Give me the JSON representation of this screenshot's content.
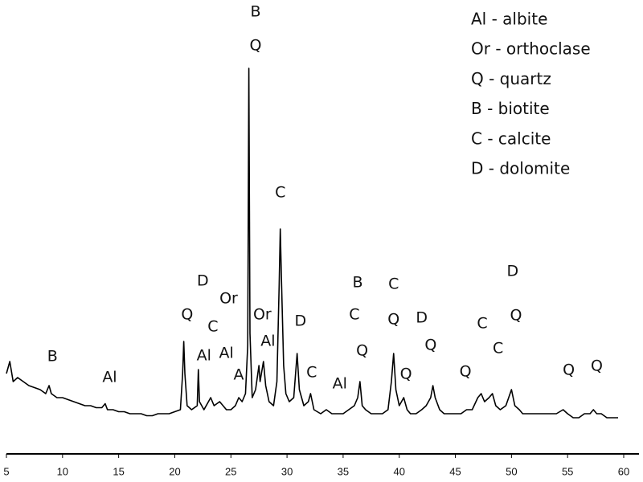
{
  "chart_data": {
    "type": "line",
    "legend": [
      "Al - albite",
      "Or - orthoclase",
      "Q - quartz",
      "B - biotite",
      "C - calcite",
      "D - dolomite"
    ],
    "xlim": [
      5,
      60
    ],
    "xticks": [
      5,
      10,
      15,
      20,
      25,
      30,
      35,
      40,
      45,
      50,
      55,
      60
    ],
    "ylim": [
      0,
      112
    ],
    "series": [
      {
        "color": "#000000",
        "x": [
          5,
          5.3,
          5.6,
          6,
          6.5,
          7,
          7.5,
          8,
          8.5,
          8.8,
          9,
          9.5,
          10,
          10.5,
          11,
          11.5,
          12,
          12.5,
          13,
          13.5,
          13.8,
          14,
          14.5,
          15,
          15.5,
          16,
          16.5,
          17,
          17.5,
          18,
          18.5,
          19,
          19.5,
          20,
          20.5,
          20.7,
          20.8,
          20.9,
          21.1,
          21.5,
          22,
          22.1,
          22.2,
          22.6,
          23,
          23.2,
          23.5,
          24,
          24.3,
          24.6,
          25,
          25.4,
          25.7,
          26,
          26.3,
          26.5,
          26.6,
          26.7,
          26.9,
          27.2,
          27.5,
          27.6,
          27.9,
          28.1,
          28.4,
          28.8,
          29.1,
          29.3,
          29.4,
          29.5,
          29.7,
          29.9,
          30.2,
          30.6,
          30.9,
          31.1,
          31.5,
          31.9,
          32.1,
          32.4,
          33,
          33.5,
          34,
          34.5,
          35,
          35.5,
          36,
          36.3,
          36.5,
          36.7,
          37,
          37.5,
          38,
          38.5,
          39,
          39.3,
          39.5,
          39.7,
          40,
          40.4,
          40.7,
          41,
          41.5,
          42,
          42.4,
          42.8,
          43,
          43.2,
          43.6,
          44,
          44.5,
          45,
          45.5,
          46,
          46.5,
          47,
          47.3,
          47.6,
          48,
          48.3,
          48.6,
          49,
          49.5,
          50,
          50.3,
          50.7,
          51,
          51.5,
          52,
          52.5,
          53,
          53.5,
          54,
          54.6,
          55,
          55.5,
          56,
          56.5,
          57,
          57.3,
          57.6,
          58,
          58.5,
          59,
          59.5
        ],
        "values": [
          20,
          23,
          18,
          19,
          18,
          17,
          16.5,
          16,
          15,
          17,
          15,
          14,
          14,
          13.5,
          13,
          12.5,
          12,
          12,
          11.5,
          11.5,
          12.5,
          11,
          11,
          10.5,
          10.5,
          10,
          10,
          10,
          9.5,
          9.5,
          10,
          10,
          10,
          10.5,
          11,
          20,
          28,
          20,
          12,
          11,
          12,
          21,
          13,
          11,
          13,
          14,
          12,
          13,
          12,
          11,
          11,
          12,
          14,
          13,
          15,
          27,
          96,
          30,
          14,
          16,
          22,
          18,
          23,
          17,
          13,
          12,
          18,
          42,
          56,
          44,
          22,
          15,
          13,
          14,
          25,
          16,
          12,
          13,
          15,
          11,
          10,
          11,
          10,
          10,
          10,
          11,
          12,
          14,
          18,
          12,
          11,
          10,
          10,
          10,
          11,
          18,
          25,
          16,
          12,
          14,
          11,
          10,
          10,
          11,
          12,
          14,
          17,
          14,
          11,
          10,
          10,
          10,
          10,
          11,
          11,
          14,
          15,
          13,
          14,
          15,
          12,
          11,
          12,
          16,
          12,
          11,
          10,
          10,
          10,
          10,
          10,
          10,
          10,
          11,
          10,
          9,
          9,
          10,
          10,
          11,
          10,
          10,
          9,
          9,
          9
        ]
      }
    ],
    "annotations": [
      {
        "text": "B",
        "x": 27.2,
        "y": 110
      },
      {
        "text": "Q",
        "x": 27.2,
        "y": 101.6
      },
      {
        "text": "C",
        "x": 29.4,
        "y": 65
      },
      {
        "text": "D",
        "x": 22.5,
        "y": 43
      },
      {
        "text": "Or",
        "x": 24.8,
        "y": 38.6
      },
      {
        "text": "Q",
        "x": 21.1,
        "y": 34.6
      },
      {
        "text": "C",
        "x": 23.4,
        "y": 31.6
      },
      {
        "text": "Al",
        "x": 22.6,
        "y": 24.4
      },
      {
        "text": "Al",
        "x": 24.6,
        "y": 25
      },
      {
        "text": "A",
        "x": 25.7,
        "y": 19.6
      },
      {
        "text": "Or",
        "x": 27.8,
        "y": 34.6
      },
      {
        "text": "Al",
        "x": 28.3,
        "y": 28
      },
      {
        "text": "D",
        "x": 31.2,
        "y": 33
      },
      {
        "text": "C",
        "x": 32.2,
        "y": 20.2
      },
      {
        "text": "Al",
        "x": 34.7,
        "y": 17.4
      },
      {
        "text": "B",
        "x": 36.3,
        "y": 42.6
      },
      {
        "text": "C",
        "x": 36,
        "y": 34.6
      },
      {
        "text": "Q",
        "x": 36.7,
        "y": 25.6
      },
      {
        "text": "C",
        "x": 39.5,
        "y": 42.2
      },
      {
        "text": "Q",
        "x": 39.5,
        "y": 33.4
      },
      {
        "text": "D",
        "x": 42,
        "y": 33.8
      },
      {
        "text": "Q",
        "x": 40.6,
        "y": 19.8
      },
      {
        "text": "Q",
        "x": 42.8,
        "y": 27
      },
      {
        "text": "Q",
        "x": 45.9,
        "y": 20.4
      },
      {
        "text": "C",
        "x": 47.4,
        "y": 32.4
      },
      {
        "text": "C",
        "x": 48.8,
        "y": 26.2
      },
      {
        "text": "D",
        "x": 50.1,
        "y": 45.4
      },
      {
        "text": "Q",
        "x": 50.4,
        "y": 34.4
      },
      {
        "text": "Q",
        "x": 55.1,
        "y": 20.8
      },
      {
        "text": "Q",
        "x": 57.6,
        "y": 21.8
      },
      {
        "text": "B",
        "x": 9.1,
        "y": 24.2
      },
      {
        "text": "Al",
        "x": 14.2,
        "y": 19
      }
    ]
  }
}
